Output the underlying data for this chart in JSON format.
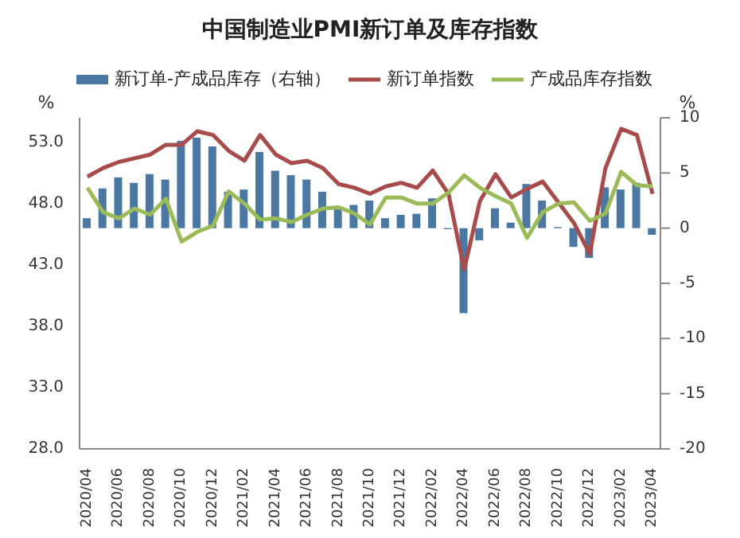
{
  "chart_data": {
    "type": "line",
    "title": "中国制造业PMI新订单及库存指数",
    "categories": [
      "2020/04",
      null,
      "2020/06",
      null,
      "2020/08",
      null,
      "2020/10",
      null,
      "2020/12",
      null,
      "2021/02",
      null,
      "2021/04",
      null,
      "2021/06",
      null,
      "2021/08",
      null,
      "2021/10",
      null,
      "2021/12",
      null,
      "2022/02",
      null,
      "2022/04",
      null,
      "2022/06",
      null,
      "2022/08",
      null,
      "2022/10",
      null,
      "2022/12",
      null,
      "2023/02",
      null,
      "2023/04"
    ],
    "series": [
      {
        "name": "新订单-产成品库存（右轴）",
        "type": "bar",
        "axis": "y2",
        "color": "#4a78a3",
        "values": [
          0.9,
          3.6,
          4.6,
          4.1,
          4.9,
          4.4,
          7.9,
          8.2,
          7.4,
          3.3,
          3.5,
          6.9,
          5.2,
          4.8,
          4.4,
          3.3,
          1.9,
          2.1,
          2.5,
          0.9,
          1.2,
          1.3,
          2.7,
          -0.1,
          -7.7,
          -1.1,
          1.8,
          0.5,
          4.0,
          2.5,
          0.1,
          -1.7,
          -2.7,
          3.7,
          3.5,
          4.1,
          -0.6
        ]
      },
      {
        "name": "新订单指数",
        "color": "#a84b4b",
        "values": [
          50.2,
          50.9,
          51.4,
          51.7,
          52.0,
          52.8,
          52.8,
          53.9,
          53.6,
          52.3,
          51.5,
          53.6,
          52.0,
          51.3,
          51.5,
          50.9,
          49.6,
          49.3,
          48.8,
          49.4,
          49.7,
          49.3,
          50.7,
          48.8,
          42.6,
          48.2,
          50.4,
          48.5,
          49.2,
          49.8,
          48.1,
          46.4,
          43.9,
          50.9,
          54.1,
          53.6,
          48.8
        ]
      },
      {
        "name": "产成品库存指数",
        "color": "#9bbb59",
        "values": [
          49.3,
          47.3,
          46.8,
          47.6,
          47.1,
          48.4,
          44.9,
          45.7,
          46.2,
          49.0,
          48.0,
          46.7,
          46.8,
          46.5,
          47.1,
          47.6,
          47.7,
          47.2,
          46.3,
          48.5,
          48.5,
          48.0,
          48.0,
          48.9,
          50.3,
          49.3,
          48.6,
          48.0,
          45.2,
          47.3,
          48.0,
          48.1,
          46.6,
          47.2,
          50.6,
          49.5,
          49.4
        ]
      }
    ],
    "ylabel": "%",
    "y2label": "%",
    "ylim": [
      28,
      55
    ],
    "yticks": [
      {
        "value": 28,
        "label": "28.0"
      },
      {
        "value": 33,
        "label": "33.0"
      },
      {
        "value": 38,
        "label": "38.0"
      },
      {
        "value": 43,
        "label": "43.0"
      },
      {
        "value": 48,
        "label": "48.0"
      },
      {
        "value": 53,
        "label": "53.0"
      }
    ],
    "y2lim": [
      -20,
      10
    ],
    "y2ticks": [
      -20,
      -15,
      -10,
      -5,
      0,
      5,
      10
    ],
    "legend": "top",
    "grid": false
  }
}
